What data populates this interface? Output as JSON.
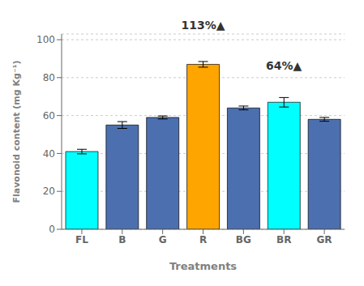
{
  "chart_data": {
    "type": "bar",
    "categories": [
      "FL",
      "B",
      "G",
      "R",
      "BG",
      "BR",
      "GR"
    ],
    "values": [
      41.0,
      55.0,
      59.0,
      87.0,
      64.0,
      67.0,
      58.0
    ],
    "errors": [
      1.2,
      1.8,
      0.8,
      1.5,
      1.0,
      2.5,
      1.0
    ],
    "colors": [
      "#00FFFF",
      "#4C6FAF",
      "#4C6FAF",
      "#FFA500",
      "#4C6FAF",
      "#00FFFF",
      "#4C6FAF"
    ],
    "xlabel": "Treatments",
    "ylabel": "Flavonoid content (mg Kg⁻¹)",
    "ylim": [
      0,
      103
    ],
    "yticks": [
      0,
      20,
      40,
      60,
      80,
      100
    ],
    "grid": true,
    "annotations": [
      {
        "text": "113%▲",
        "x": "R",
        "y": 103.5
      },
      {
        "text": "64%▲",
        "x": "BR",
        "y": 82.0
      }
    ]
  }
}
